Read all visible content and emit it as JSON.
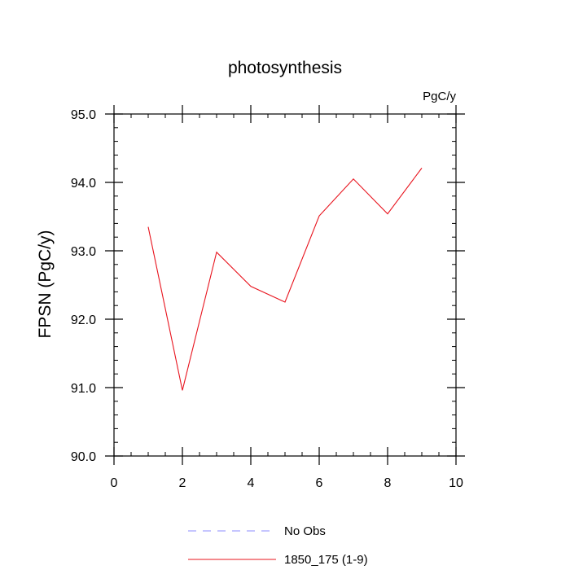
{
  "chart_data": {
    "type": "line",
    "title": "photosynthesis",
    "units_label": "PgC/y",
    "xlabel": "",
    "ylabel": "FPSN  (PgC/y)",
    "xlim": [
      0,
      10
    ],
    "ylim": [
      90.0,
      95.0
    ],
    "x_ticks": [
      0,
      2,
      4,
      6,
      8,
      10
    ],
    "x_tick_labels": [
      "0",
      "2",
      "4",
      "6",
      "8",
      "10"
    ],
    "y_ticks": [
      90.0,
      91.0,
      92.0,
      93.0,
      94.0,
      95.0
    ],
    "y_tick_labels": [
      "90.0",
      "91.0",
      "92.0",
      "93.0",
      "94.0",
      "95.0"
    ],
    "grid": false,
    "legend_position": "bottom",
    "series": [
      {
        "name": "1850_175 (1-9)",
        "color": "#e8141e",
        "dash": "solid",
        "x": [
          1,
          2,
          3,
          4,
          5,
          6,
          7,
          8,
          9
        ],
        "y": [
          93.35,
          90.96,
          92.98,
          92.48,
          92.25,
          93.51,
          94.05,
          93.54,
          94.21
        ]
      }
    ],
    "legend": [
      {
        "label": "No Obs",
        "color": "#8c8cff",
        "dash": "dashed"
      },
      {
        "label": "1850_175 (1-9)",
        "color": "#e8141e",
        "dash": "solid"
      }
    ]
  }
}
